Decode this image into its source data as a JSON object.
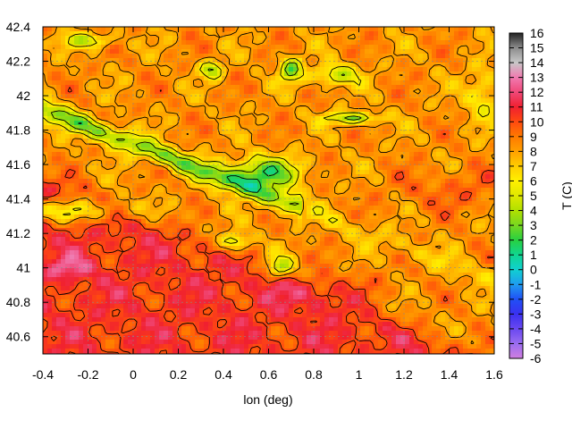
{
  "chart_data": {
    "type": "heatmap",
    "title": "",
    "xlabel": "lon (deg)",
    "ylabel": "",
    "xlim": [
      -0.4,
      1.6
    ],
    "ylim": [
      40.5,
      42.4
    ],
    "x_ticks": [
      "-0.4",
      "-0.2",
      "0",
      "0.2",
      "0.4",
      "0.6",
      "0.8",
      "1",
      "1.2",
      "1.4",
      "1.6"
    ],
    "y_ticks": [
      "40.6",
      "40.8",
      "41",
      "41.2",
      "41.4",
      "41.6",
      "41.8",
      "42",
      "42.2",
      "42.4"
    ],
    "grid": true,
    "contours": true,
    "colorbar": {
      "label": "T (C)",
      "range": [
        -6,
        16
      ],
      "ticks": [
        "-6",
        "-5",
        "-4",
        "-3",
        "-2",
        "-1",
        "0",
        "1",
        "2",
        "3",
        "4",
        "5",
        "6",
        "7",
        "8",
        "9",
        "10",
        "11",
        "12",
        "13",
        "14",
        "15",
        "16"
      ]
    },
    "colormap": [
      [
        -6,
        "#d07ee0"
      ],
      [
        -5,
        "#9a6df0"
      ],
      [
        -4,
        "#6a48f0"
      ],
      [
        -3,
        "#3a30f0"
      ],
      [
        -2,
        "#2050f5"
      ],
      [
        -1,
        "#1f9cf0"
      ],
      [
        0,
        "#10d0d0"
      ],
      [
        1,
        "#10d690"
      ],
      [
        2,
        "#28d040"
      ],
      [
        3,
        "#78d820"
      ],
      [
        4,
        "#b0e000"
      ],
      [
        5,
        "#e0e800"
      ],
      [
        6,
        "#fff000"
      ],
      [
        7,
        "#ffcc00"
      ],
      [
        8,
        "#ffa000"
      ],
      [
        9,
        "#ff7a00"
      ],
      [
        10,
        "#ff4a10"
      ],
      [
        11,
        "#f02030"
      ],
      [
        12,
        "#f04878"
      ],
      [
        13,
        "#f07ab0"
      ],
      [
        14,
        "#c8c8c8"
      ],
      [
        15,
        "#8c8c8c"
      ],
      [
        16,
        "#222222"
      ]
    ],
    "notes_visible": []
  }
}
